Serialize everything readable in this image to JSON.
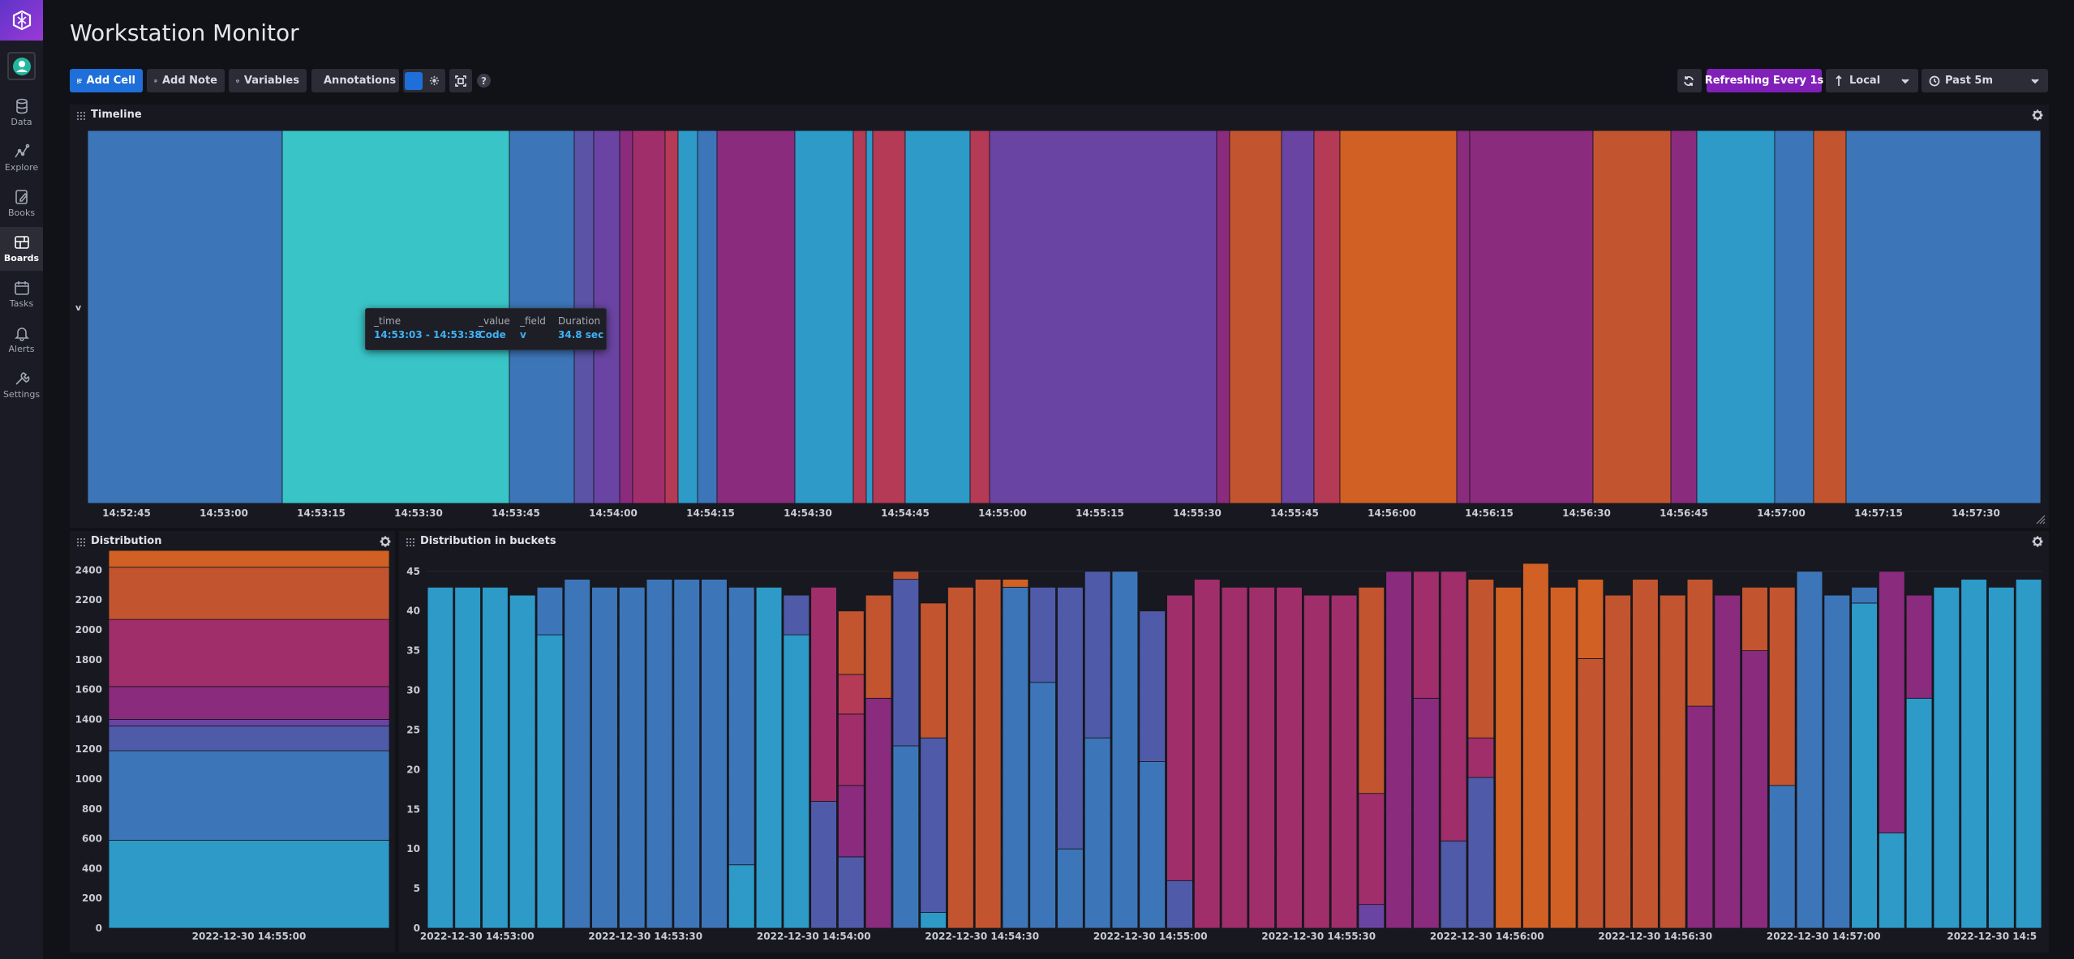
{
  "nav": {
    "items": [
      {
        "label": "Data",
        "icon": "database-icon"
      },
      {
        "label": "Explore",
        "icon": "graph-icon"
      },
      {
        "label": "Books",
        "icon": "notebook-icon"
      },
      {
        "label": "Boards",
        "icon": "dashboard-icon"
      },
      {
        "label": "Tasks",
        "icon": "calendar-icon"
      },
      {
        "label": "Alerts",
        "icon": "bell-icon"
      },
      {
        "label": "Settings",
        "icon": "wrench-icon"
      }
    ],
    "active": "Boards"
  },
  "dashboard": {
    "title": "Workstation Monitor"
  },
  "toolbar": {
    "add_cell": "Add Cell",
    "add_note": "Add Note",
    "variables": "Variables",
    "annotations": "Annotations",
    "refreshing": "Refreshing Every 1s",
    "timezone": "Local",
    "range": "Past 5m"
  },
  "colors": {
    "brand": "#9b39d6",
    "primary_button": "#1e6fd9",
    "refresh_badge": "#8120b8",
    "tooltip_value": "#3fb2f5"
  },
  "timeline": {
    "title": "Timeline",
    "y_label": "v",
    "x_ticks": [
      "14:52:45",
      "14:53:00",
      "14:53:15",
      "14:53:30",
      "14:53:45",
      "14:54:00",
      "14:54:15",
      "14:54:30",
      "14:54:45",
      "14:55:00",
      "14:55:15",
      "14:55:30",
      "14:55:45",
      "14:56:00",
      "14:56:15",
      "14:56:30",
      "14:56:45",
      "14:57:00",
      "14:57:15",
      "14:57:30"
    ],
    "tooltip": {
      "headers": [
        "_time",
        "_value",
        "_field",
        "Duration"
      ],
      "values": [
        "14:53:03 - 14:53:38",
        "Code",
        "v",
        "34.8 sec"
      ]
    }
  },
  "distribution": {
    "title": "Distribution",
    "y_ticks": [
      "2400",
      "2200",
      "2000",
      "1800",
      "1600",
      "1400",
      "1200",
      "1000",
      "800",
      "600",
      "400",
      "200",
      "0"
    ],
    "x_tick": "2022-12-30 14:55:00"
  },
  "buckets": {
    "title": "Distribution in buckets",
    "y_ticks": [
      "45",
      "40",
      "35",
      "30",
      "25",
      "20",
      "15",
      "10",
      "5",
      "0"
    ],
    "x_ticks": [
      "2022-12-30 14:53:00",
      "2022-12-30 14:53:30",
      "2022-12-30 14:54:00",
      "2022-12-30 14:54:30",
      "2022-12-30 14:55:00",
      "2022-12-30 14:55:30",
      "2022-12-30 14:56:00",
      "2022-12-30 14:56:30",
      "2022-12-30 14:57:00",
      "2022-12-30 14:5"
    ]
  },
  "chart_data": [
    {
      "type": "bar",
      "title": "Timeline",
      "ylabel": "v",
      "xlim": [
        "14:52:39",
        "14:57:40"
      ],
      "segments": [
        {
          "start": "14:52:39",
          "end": "14:53:09",
          "color": "#3d76b8"
        },
        {
          "start": "14:53:09",
          "end": "14:53:44",
          "color": "#39c5c7"
        },
        {
          "start": "14:53:44",
          "end": "14:53:54",
          "color": "#3d76b8"
        },
        {
          "start": "14:53:54",
          "end": "14:53:57",
          "color": "#5b53a6"
        },
        {
          "start": "14:53:57",
          "end": "14:54:01",
          "color": "#6a44a2"
        },
        {
          "start": "14:54:01",
          "end": "14:54:03",
          "color": "#8a2b7e"
        },
        {
          "start": "14:54:03",
          "end": "14:54:08",
          "color": "#a02e6a"
        },
        {
          "start": "14:54:08",
          "end": "14:54:10",
          "color": "#b43a55"
        },
        {
          "start": "14:54:10",
          "end": "14:54:13",
          "color": "#2d9ac8"
        },
        {
          "start": "14:54:13",
          "end": "14:54:16",
          "color": "#3d76b8"
        },
        {
          "start": "14:54:16",
          "end": "14:54:28",
          "color": "#8a2b7e"
        },
        {
          "start": "14:54:28",
          "end": "14:54:37",
          "color": "#2d9ac8"
        },
        {
          "start": "14:54:37",
          "end": "14:54:39",
          "color": "#b43a55"
        },
        {
          "start": "14:54:39",
          "end": "14:54:40",
          "color": "#2d9ac8"
        },
        {
          "start": "14:54:40",
          "end": "14:54:45",
          "color": "#b43a55"
        },
        {
          "start": "14:54:45",
          "end": "14:54:55",
          "color": "#2d9ac8"
        },
        {
          "start": "14:54:55",
          "end": "14:54:58",
          "color": "#b43a55"
        },
        {
          "start": "14:54:58",
          "end": "14:55:33",
          "color": "#6a44a2"
        },
        {
          "start": "14:55:33",
          "end": "14:55:35",
          "color": "#8a2b7e"
        },
        {
          "start": "14:55:35",
          "end": "14:55:43",
          "color": "#c2552f"
        },
        {
          "start": "14:55:43",
          "end": "14:55:48",
          "color": "#6a44a2"
        },
        {
          "start": "14:55:48",
          "end": "14:55:52",
          "color": "#b43a55"
        },
        {
          "start": "14:55:52",
          "end": "14:56:10",
          "color": "#d06024"
        },
        {
          "start": "14:56:10",
          "end": "14:56:12",
          "color": "#8a2b7e"
        },
        {
          "start": "14:56:12",
          "end": "14:56:31",
          "color": "#8a2b7e"
        },
        {
          "start": "14:56:31",
          "end": "14:56:43",
          "color": "#c2552f"
        },
        {
          "start": "14:56:43",
          "end": "14:56:47",
          "color": "#8a2b7e"
        },
        {
          "start": "14:56:47",
          "end": "14:56:59",
          "color": "#2d9ac8"
        },
        {
          "start": "14:56:59",
          "end": "14:57:05",
          "color": "#3d76b8"
        },
        {
          "start": "14:57:05",
          "end": "14:57:10",
          "color": "#c2552f"
        },
        {
          "start": "14:57:10",
          "end": "14:57:40",
          "color": "#3d76b8"
        }
      ]
    },
    {
      "type": "bar",
      "title": "Distribution",
      "categories": [
        "2022-12-30 14:55:00"
      ],
      "ylim": [
        0,
        2500
      ],
      "stack": [
        {
          "from": 0,
          "to": 590,
          "color": "#2d9ac8"
        },
        {
          "from": 590,
          "to": 1190,
          "color": "#3d76b8"
        },
        {
          "from": 1190,
          "to": 1355,
          "color": "#4f5ba8"
        },
        {
          "from": 1355,
          "to": 1400,
          "color": "#6a44a2"
        },
        {
          "from": 1400,
          "to": 1620,
          "color": "#8a2b7e"
        },
        {
          "from": 1620,
          "to": 2070,
          "color": "#a02e6a"
        },
        {
          "from": 2070,
          "to": 2420,
          "color": "#c2552f"
        },
        {
          "from": 2420,
          "to": 2570,
          "color": "#d06024"
        }
      ]
    },
    {
      "type": "bar",
      "title": "Distribution in buckets",
      "x_range": [
        "14:52:51",
        "14:57:39"
      ],
      "ylim": [
        0,
        46
      ],
      "series_colors": [
        "#2d9ac8",
        "#3d76b8",
        "#4f5ba8",
        "#8a2b7e",
        "#a02e6a",
        "#c2552f",
        "#d06024"
      ],
      "bars": [
        [
          [
            43,
            "#2d9ac8"
          ]
        ],
        [
          [
            43,
            "#2d9ac8"
          ]
        ],
        [
          [
            43,
            "#2d9ac8"
          ]
        ],
        [
          [
            42,
            "#2d9ac8"
          ]
        ],
        [
          [
            37,
            "#2d9ac8"
          ],
          [
            43,
            "#3d76b8"
          ]
        ],
        [
          [
            44,
            "#3d76b8"
          ]
        ],
        [
          [
            43,
            "#3d76b8"
          ]
        ],
        [
          [
            43,
            "#3d76b8"
          ]
        ],
        [
          [
            44,
            "#3d76b8"
          ]
        ],
        [
          [
            44,
            "#3d76b8"
          ]
        ],
        [
          [
            44,
            "#3d76b8"
          ]
        ],
        [
          [
            8,
            "#2d9ac8"
          ],
          [
            43,
            "#3d76b8"
          ]
        ],
        [
          [
            43,
            "#2d9ac8"
          ]
        ],
        [
          [
            37,
            "#2d9ac8"
          ],
          [
            42,
            "#4f5ba8"
          ]
        ],
        [
          [
            16,
            "#4f5ba8"
          ],
          [
            43,
            "#a02e6a"
          ]
        ],
        [
          [
            9,
            "#4f5ba8"
          ],
          [
            18,
            "#8a2b7e"
          ],
          [
            27,
            "#a02e6a"
          ],
          [
            32,
            "#b43a55"
          ],
          [
            40,
            "#c2552f"
          ]
        ],
        [
          [
            29,
            "#8a2b7e"
          ],
          [
            42,
            "#c2552f"
          ]
        ],
        [
          [
            23,
            "#3d76b8"
          ],
          [
            44,
            "#4f5ba8"
          ],
          [
            45,
            "#c2552f"
          ]
        ],
        [
          [
            2,
            "#2d9ac8"
          ],
          [
            24,
            "#4f5ba8"
          ],
          [
            41,
            "#c2552f"
          ]
        ],
        [
          [
            43,
            "#c2552f"
          ]
        ],
        [
          [
            44,
            "#c2552f"
          ]
        ],
        [
          [
            43,
            "#3d76b8"
          ],
          [
            44,
            "#d06024"
          ]
        ],
        [
          [
            31,
            "#3d76b8"
          ],
          [
            43,
            "#4f5ba8"
          ]
        ],
        [
          [
            10,
            "#3d76b8"
          ],
          [
            43,
            "#4f5ba8"
          ]
        ],
        [
          [
            24,
            "#3d76b8"
          ],
          [
            45,
            "#4f5ba8"
          ]
        ],
        [
          [
            45,
            "#3d76b8"
          ]
        ],
        [
          [
            21,
            "#3d76b8"
          ],
          [
            40,
            "#4f5ba8"
          ]
        ],
        [
          [
            6,
            "#4f5ba8"
          ],
          [
            42,
            "#a02e6a"
          ]
        ],
        [
          [
            44,
            "#a02e6a"
          ]
        ],
        [
          [
            43,
            "#a02e6a"
          ]
        ],
        [
          [
            43,
            "#a02e6a"
          ]
        ],
        [
          [
            43,
            "#a02e6a"
          ]
        ],
        [
          [
            42,
            "#a02e6a"
          ]
        ],
        [
          [
            42,
            "#a02e6a"
          ]
        ],
        [
          [
            3,
            "#6a44a2"
          ],
          [
            17,
            "#a02e6a"
          ],
          [
            43,
            "#c2552f"
          ]
        ],
        [
          [
            45,
            "#8a2b7e"
          ]
        ],
        [
          [
            29,
            "#8a2b7e"
          ],
          [
            45,
            "#a02e6a"
          ]
        ],
        [
          [
            11,
            "#4f5ba8"
          ],
          [
            45,
            "#a02e6a"
          ]
        ],
        [
          [
            19,
            "#4f5ba8"
          ],
          [
            24,
            "#a02e6a"
          ],
          [
            44,
            "#c2552f"
          ]
        ],
        [
          [
            43,
            "#d06024"
          ]
        ],
        [
          [
            46,
            "#d06024"
          ]
        ],
        [
          [
            43,
            "#d06024"
          ]
        ],
        [
          [
            34,
            "#c2552f"
          ],
          [
            44,
            "#d06024"
          ]
        ],
        [
          [
            42,
            "#c2552f"
          ]
        ],
        [
          [
            44,
            "#c2552f"
          ]
        ],
        [
          [
            42,
            "#c2552f"
          ]
        ],
        [
          [
            28,
            "#8a2b7e"
          ],
          [
            44,
            "#c2552f"
          ]
        ],
        [
          [
            42,
            "#8a2b7e"
          ]
        ],
        [
          [
            35,
            "#8a2b7e"
          ],
          [
            43,
            "#c2552f"
          ]
        ],
        [
          [
            18,
            "#3d76b8"
          ],
          [
            43,
            "#c2552f"
          ]
        ],
        [
          [
            45,
            "#3d76b8"
          ]
        ],
        [
          [
            42,
            "#3d76b8"
          ]
        ],
        [
          [
            41,
            "#2d9ac8"
          ],
          [
            43,
            "#3d76b8"
          ]
        ],
        [
          [
            12,
            "#2d9ac8"
          ],
          [
            45,
            "#8a2b7e"
          ]
        ],
        [
          [
            29,
            "#2d9ac8"
          ],
          [
            42,
            "#8a2b7e"
          ]
        ],
        [
          [
            43,
            "#2d9ac8"
          ]
        ],
        [
          [
            44,
            "#2d9ac8"
          ]
        ],
        [
          [
            43,
            "#2d9ac8"
          ]
        ],
        [
          [
            44,
            "#2d9ac8"
          ]
        ]
      ]
    }
  ]
}
